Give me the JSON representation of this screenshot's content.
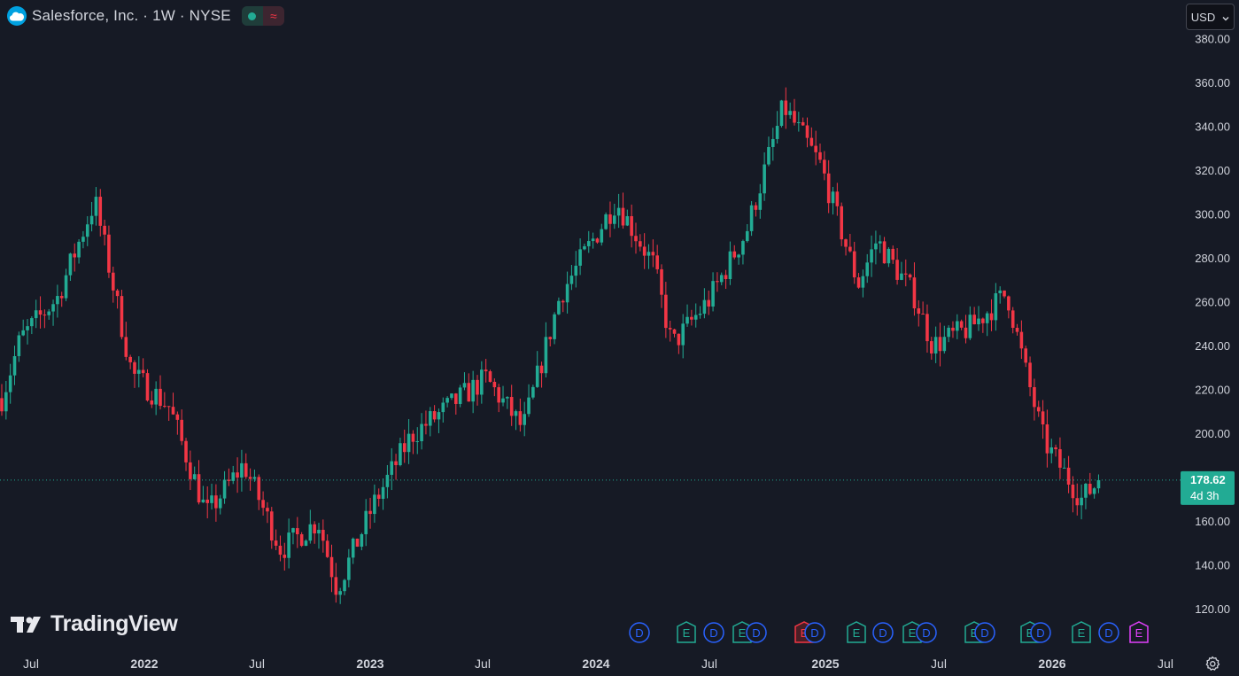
{
  "header": {
    "symbol": "Salesforce, Inc. · 1W · NYSE",
    "logo_icon": "cloud-icon",
    "status_market": "market-open-icon",
    "status_realtime": "≈"
  },
  "currency": {
    "label": "USD",
    "icon": "chevron-down-icon"
  },
  "colors": {
    "up": "#22ab94",
    "down": "#f23645",
    "background": "#161a25",
    "axis_text": "#d1d4dc",
    "price_label": "#22ab94"
  },
  "brand": {
    "name": "TradingView"
  },
  "chart_data": {
    "type": "candlestick",
    "interval": "weekly",
    "y_axis": {
      "side": "right",
      "ticks": [
        120,
        140,
        160,
        180,
        200,
        220,
        240,
        260,
        280,
        300,
        320,
        340,
        360,
        380
      ],
      "tick_labels": [
        "120.00",
        "140.00",
        "160.00",
        "180.00",
        "200.00",
        "220.00",
        "240.00",
        "260.00",
        "280.00",
        "300.00",
        "320.00",
        "340.00",
        "360.00",
        "380.00"
      ]
    },
    "x_axis": {
      "labels": [
        "Jul",
        "2022",
        "Jul",
        "2023",
        "Jul",
        "2024",
        "Jul",
        "2025",
        "Jul",
        "2026",
        "Jul"
      ],
      "bold_labels": [
        "2022",
        "2023",
        "2024",
        "2025",
        "2026"
      ]
    },
    "last_price": {
      "value": 178.62,
      "label": "178.62",
      "countdown": "4d 3h"
    },
    "key_points": [
      {
        "date": "2021-06",
        "price": 216
      },
      {
        "date": "2021-07",
        "price": 243
      },
      {
        "date": "2021-09",
        "price": 262
      },
      {
        "date": "2021-11",
        "price": 306
      },
      {
        "date": "2022-01",
        "price": 227
      },
      {
        "date": "2022-03",
        "price": 212
      },
      {
        "date": "2022-05",
        "price": 163
      },
      {
        "date": "2022-07",
        "price": 186
      },
      {
        "date": "2022-09",
        "price": 147
      },
      {
        "date": "2022-11",
        "price": 160
      },
      {
        "date": "2022-12",
        "price": 129
      },
      {
        "date": "2023-02",
        "price": 168
      },
      {
        "date": "2023-04",
        "price": 199
      },
      {
        "date": "2023-06",
        "price": 212
      },
      {
        "date": "2023-08",
        "price": 225
      },
      {
        "date": "2023-10",
        "price": 202
      },
      {
        "date": "2023-12",
        "price": 263
      },
      {
        "date": "2024-03",
        "price": 306
      },
      {
        "date": "2024-05",
        "price": 277
      },
      {
        "date": "2024-06",
        "price": 240
      },
      {
        "date": "2024-08",
        "price": 261
      },
      {
        "date": "2024-10",
        "price": 292
      },
      {
        "date": "2024-12",
        "price": 349
      },
      {
        "date": "2025-02",
        "price": 322
      },
      {
        "date": "2025-04",
        "price": 268
      },
      {
        "date": "2025-05",
        "price": 288
      },
      {
        "date": "2025-07",
        "price": 263
      },
      {
        "date": "2025-08",
        "price": 240
      },
      {
        "date": "2025-10",
        "price": 248
      },
      {
        "date": "2025-12",
        "price": 264
      },
      {
        "date": "2026-01",
        "price": 228
      },
      {
        "date": "2026-02",
        "price": 196
      },
      {
        "date": "2026-04",
        "price": 170
      },
      {
        "date": "2026-05",
        "price": 178.62
      }
    ],
    "event_markers": [
      "D",
      "E",
      "D",
      "E",
      "D",
      "E",
      "D",
      "E",
      "D",
      "E",
      "D",
      "E",
      "D",
      "E",
      "D",
      "E"
    ]
  }
}
